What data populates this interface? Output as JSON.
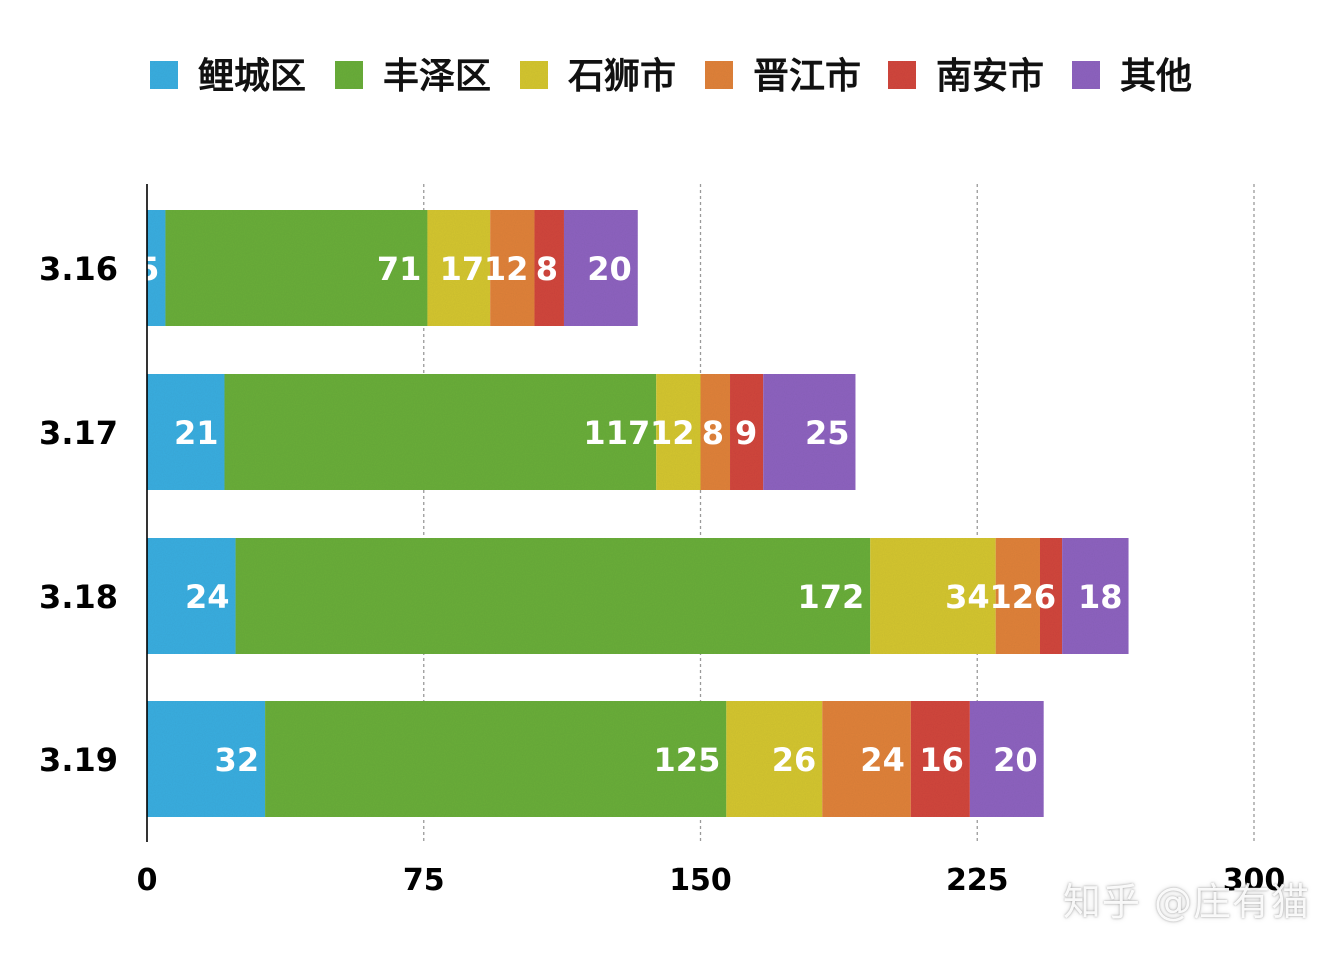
{
  "chart_data": {
    "type": "bar",
    "orientation": "horizontal",
    "stacked": true,
    "title": "",
    "xlabel": "",
    "ylabel": "",
    "categories": [
      "3.16",
      "3.17",
      "3.18",
      "3.19"
    ],
    "series": [
      {
        "name": "鲤城区",
        "color": "#3aaee0",
        "values": [
          5,
          21,
          24,
          32
        ]
      },
      {
        "name": "丰泽区",
        "color": "#6aae3b",
        "values": [
          71,
          117,
          172,
          125
        ]
      },
      {
        "name": "石狮市",
        "color": "#d4c632",
        "values": [
          17,
          12,
          34,
          26
        ]
      },
      {
        "name": "晋江市",
        "color": "#e0823a",
        "values": [
          12,
          8,
          12,
          24
        ]
      },
      {
        "name": "南安市",
        "color": "#d1463e",
        "values": [
          8,
          9,
          6,
          16
        ]
      },
      {
        "name": "其他",
        "color": "#8e64c0",
        "values": [
          20,
          25,
          18,
          20
        ]
      }
    ],
    "xlim": [
      0,
      300
    ],
    "xticks": [
      0,
      75,
      150,
      225,
      300
    ],
    "xtick_labels": [
      "0",
      "75",
      "150",
      "225",
      "300"
    ],
    "grid": "vertical-dashed",
    "legend": "top"
  },
  "watermark": "知乎 @庄有猫"
}
